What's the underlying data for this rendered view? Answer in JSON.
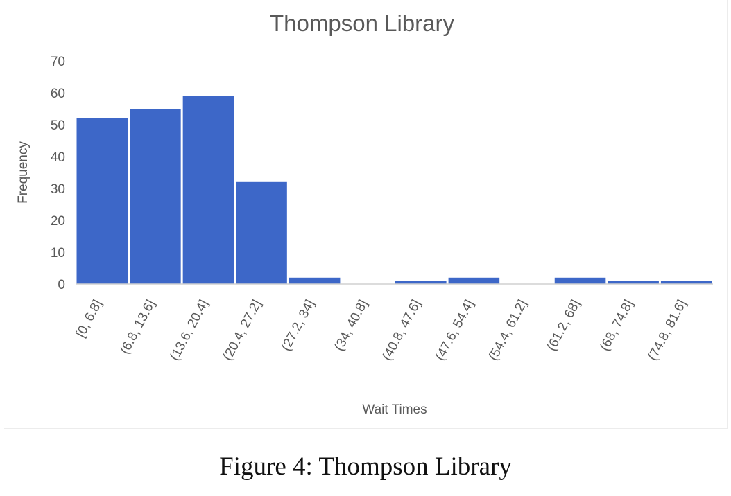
{
  "caption": "Figure 4: Thompson Library",
  "colors": {
    "bar": "#3d67c8",
    "axis": "#d0d0d0",
    "text": "#595959"
  },
  "chart_data": {
    "type": "bar",
    "title": "Thompson Library",
    "xlabel": "Wait Times",
    "ylabel": "Frequency",
    "ylim": [
      0,
      70
    ],
    "yticks": [
      0,
      10,
      20,
      30,
      40,
      50,
      60,
      70
    ],
    "grid": false,
    "legend": "none",
    "categories": [
      "[0, 6.8]",
      "(6.8, 13.6]",
      "(13.6, 20.4]",
      "(20.4, 27.2]",
      "(27.2, 34]",
      "(34, 40.8]",
      "(40.8, 47.6]",
      "(47.6, 54.4]",
      "(54.4, 61.2]",
      "(61.2, 68]",
      "(68, 74.8]",
      "(74.8, 81.6]"
    ],
    "values": [
      52,
      55,
      59,
      32,
      2,
      0,
      1,
      2,
      0,
      2,
      1,
      1
    ]
  }
}
